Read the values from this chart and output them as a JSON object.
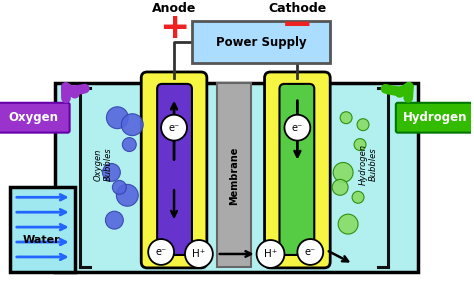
{
  "bg_color": "#ffffff",
  "tank_color": "#b2f0f0",
  "tank_border": "#000000",
  "water_input_color": "#a0e8f0",
  "anode_electrode_color": "#6633cc",
  "cathode_electrode_color": "#55cc44",
  "electrode_case_color": "#f5f542",
  "electrode_case_border": "#000000",
  "membrane_color": "#aaaaaa",
  "power_supply_color": "#aaddff",
  "power_supply_border": "#555555",
  "oxygen_label_color": "#9933cc",
  "hydrogen_label_color": "#33bb00",
  "water_label_color": "#2266ff",
  "anode_label": "Anode",
  "cathode_label": "Cathode",
  "power_supply_label": "Power Supply",
  "oxygen_label": "Oxygen",
  "hydrogen_label": "Hydrogen",
  "water_label": "Water",
  "membrane_label": "Membrane",
  "oxygen_bubbles_label": "Oxygen\nBubbles",
  "hydrogen_bubbles_label": "Hydrogen\nBubbles",
  "plus_color": "#ee2222",
  "minus_color": "#ee2222",
  "bubble_color_oxygen": "#5566dd",
  "bubble_color_hydrogen": "#88dd66",
  "bracket_color": "#111111",
  "wire_color": "#333333"
}
